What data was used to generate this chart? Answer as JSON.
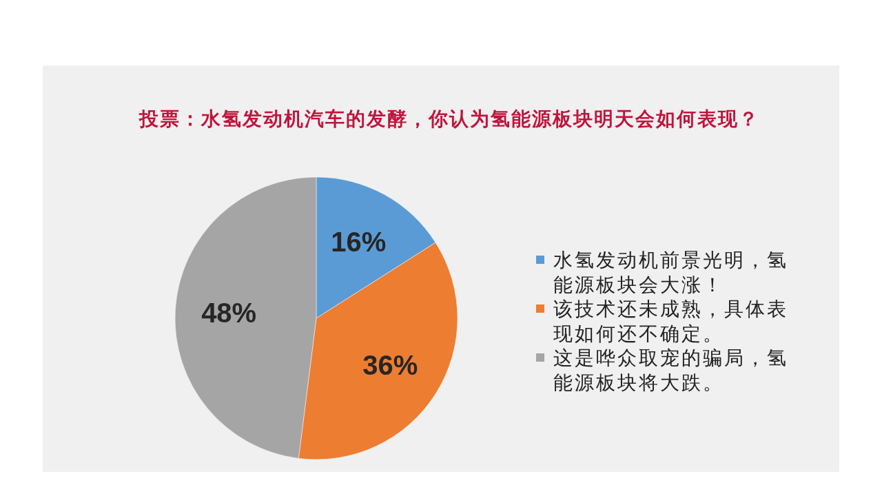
{
  "chart_data": {
    "type": "pie",
    "title": "投票：水氢发动机汽车的发酵，你认为氢能源板块明天会如何表现？",
    "categories": [
      "水氢发动机前景光明，氢能源板块会大涨！",
      "该技术还未成熟，具体表现如何还不确定。",
      "这是哗众取宠的骗局，氢能源板块将大跌。"
    ],
    "values": [
      16,
      36,
      48
    ],
    "colors": [
      "#5b9bd5",
      "#ed7d31",
      "#a5a5a5"
    ],
    "value_labels": [
      "16%",
      "36%",
      "48%"
    ],
    "legend": "right"
  }
}
